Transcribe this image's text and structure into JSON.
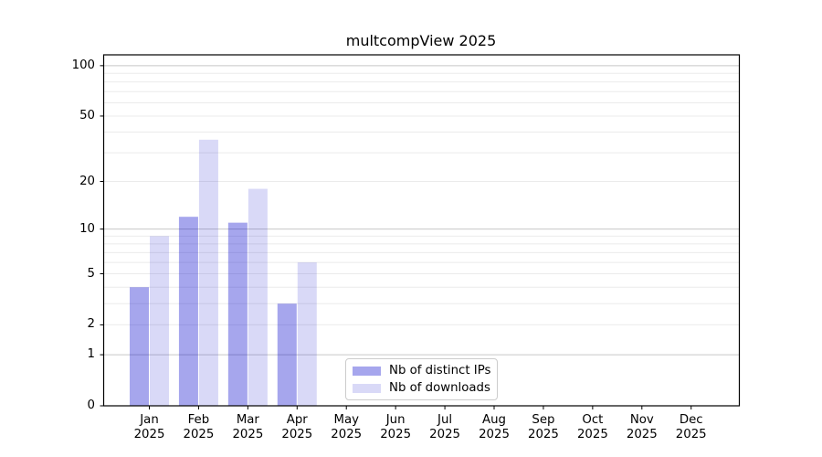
{
  "colors": {
    "background": "#ffffff",
    "axis": "#000000",
    "grid_major": "#c8c8c8",
    "grid_minor": "#ebebeb",
    "bar_distinct_ips": "rgba(0,0,204,0.35)",
    "bar_downloads": "rgba(0,0,204,0.15)",
    "legend_border": "#cccccc"
  },
  "chart_data": {
    "type": "bar",
    "title": "multcompView 2025",
    "categories": [
      "Jan",
      "Feb",
      "Mar",
      "Apr",
      "May",
      "Jun",
      "Jul",
      "Aug",
      "Sep",
      "Oct",
      "Nov",
      "Dec"
    ],
    "year_label": "2025",
    "series": [
      {
        "name": "Nb of distinct IPs",
        "color": "rgba(0,0,204,0.35)",
        "values": [
          4,
          12,
          11,
          3,
          0,
          0,
          0,
          0,
          0,
          0,
          0,
          0
        ]
      },
      {
        "name": "Nb of downloads",
        "color": "rgba(0,0,204,0.15)",
        "values": [
          9,
          36,
          18,
          6,
          0,
          0,
          0,
          0,
          0,
          0,
          0,
          0
        ]
      }
    ],
    "xlabel": "",
    "ylabel": "",
    "yscale": "log1p",
    "ylim": [
      0,
      116
    ],
    "yticks": [
      0,
      1,
      2,
      5,
      10,
      20,
      50,
      100
    ],
    "major_gridlines": [
      1,
      10,
      100
    ],
    "minor_gridlines": [
      2,
      3,
      4,
      5,
      6,
      7,
      8,
      9,
      20,
      30,
      40,
      50,
      60,
      70,
      80,
      90
    ],
    "grid": "on",
    "legend_position": "lower center"
  }
}
